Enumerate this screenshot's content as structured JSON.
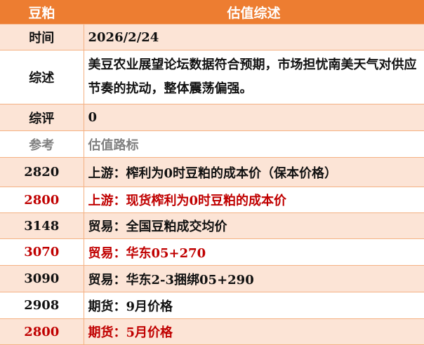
{
  "header": {
    "commodity": "豆粕",
    "title": "估值综述"
  },
  "info": [
    {
      "label": "时间",
      "value": "2026/2/24"
    },
    {
      "label": "综述",
      "value": "美豆农业展望论坛数据符合预期，市场担忧南美天气对供应节奏的扰动，整体震荡偏强。"
    },
    {
      "label": "综评",
      "value": "0"
    }
  ],
  "reference_header": {
    "label": "参考",
    "value": "估值路标"
  },
  "references": [
    {
      "price": "2820",
      "desc": "上游：榨利为0时豆粕的成本价（保本价格）",
      "highlight": false
    },
    {
      "price": "2800",
      "desc": "上游：现货榨利为0时豆粕的成本价",
      "highlight": true
    },
    {
      "price": "3148",
      "desc": "贸易：全国豆粕成交均价",
      "highlight": false
    },
    {
      "price": "3070",
      "desc": "贸易：华东05+270",
      "highlight": true
    },
    {
      "price": "3090",
      "desc": "贸易：华东2-3捆绑05+290",
      "highlight": false
    },
    {
      "price": "2908",
      "desc": "期货：9月价格",
      "highlight": false
    },
    {
      "price": "2800",
      "desc": "期货：5月价格",
      "highlight": true
    }
  ],
  "colors": {
    "header": "#ED7D31",
    "row_alt": "#FCE4D6",
    "border": "#F4B183",
    "highlight_text": "#C00000",
    "muted_text": "#808080"
  }
}
